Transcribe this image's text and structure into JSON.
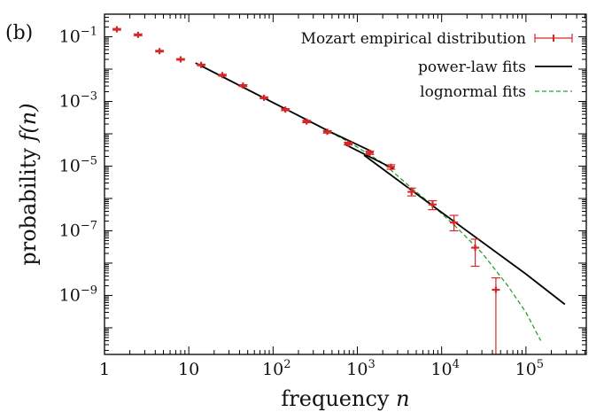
{
  "panel_label": "(b)",
  "chart_data": {
    "type": "scatter",
    "title": "",
    "xlabel": "frequency n",
    "ylabel": "probability f(n)",
    "x_scale": "log",
    "y_scale": "log",
    "xlim": [
      1,
      520000
    ],
    "ylim": [
      1.5e-11,
      0.5
    ],
    "x_ticks": [
      {
        "value": 1,
        "base": "1",
        "exp": ""
      },
      {
        "value": 10,
        "base": "10",
        "exp": ""
      },
      {
        "value": 100,
        "base": "10",
        "exp": "2"
      },
      {
        "value": 1000,
        "base": "10",
        "exp": "3"
      },
      {
        "value": 10000,
        "base": "10",
        "exp": "4"
      },
      {
        "value": 100000,
        "base": "10",
        "exp": "5"
      }
    ],
    "y_ticks": [
      {
        "value": 0.1,
        "base": "10",
        "exp": "−1"
      },
      {
        "value": 0.001,
        "base": "10",
        "exp": "−3"
      },
      {
        "value": 1e-05,
        "base": "10",
        "exp": "−5"
      },
      {
        "value": 1e-07,
        "base": "10",
        "exp": "−7"
      },
      {
        "value": 1e-09,
        "base": "10",
        "exp": "−9"
      }
    ],
    "legend_position": "top-right",
    "grid": false,
    "series": [
      {
        "name": "Mozart empirical distribution",
        "kind": "errorbar",
        "color": "#d62728",
        "points": [
          {
            "x": 1.4,
            "y": 0.17,
            "ylo": 0.16,
            "yhi": 0.18
          },
          {
            "x": 2.5,
            "y": 0.115,
            "ylo": 0.108,
            "yhi": 0.122
          },
          {
            "x": 4.5,
            "y": 0.036,
            "ylo": 0.034,
            "yhi": 0.038
          },
          {
            "x": 8,
            "y": 0.02,
            "ylo": 0.019,
            "yhi": 0.021
          },
          {
            "x": 14,
            "y": 0.0135,
            "ylo": 0.0128,
            "yhi": 0.0142
          },
          {
            "x": 25,
            "y": 0.0065,
            "ylo": 0.0061,
            "yhi": 0.0069
          },
          {
            "x": 44,
            "y": 0.0031,
            "ylo": 0.0029,
            "yhi": 0.0033
          },
          {
            "x": 78,
            "y": 0.0013,
            "ylo": 0.00122,
            "yhi": 0.00138
          },
          {
            "x": 140,
            "y": 0.00056,
            "ylo": 0.00052,
            "yhi": 0.0006
          },
          {
            "x": 250,
            "y": 0.00024,
            "ylo": 0.00022,
            "yhi": 0.00026
          },
          {
            "x": 440,
            "y": 0.000115,
            "ylo": 0.000105,
            "yhi": 0.000125
          },
          {
            "x": 780,
            "y": 5e-05,
            "ylo": 4.5e-05,
            "yhi": 5.5e-05
          },
          {
            "x": 1400,
            "y": 2.6e-05,
            "ylo": 2.3e-05,
            "yhi": 2.9e-05
          },
          {
            "x": 2500,
            "y": 9.5e-06,
            "ylo": 8e-06,
            "yhi": 1.1e-05
          },
          {
            "x": 4400,
            "y": 1.6e-06,
            "ylo": 1.2e-06,
            "yhi": 2.1e-06
          },
          {
            "x": 7800,
            "y": 6.5e-07,
            "ylo": 4.5e-07,
            "yhi": 8.5e-07
          },
          {
            "x": 14000,
            "y": 1.8e-07,
            "ylo": 1e-07,
            "yhi": 3e-07
          },
          {
            "x": 25000,
            "y": 3e-08,
            "ylo": 8e-09,
            "yhi": 5.5e-08
          },
          {
            "x": 44000,
            "y": 1.5e-09,
            "ylo": 1.5e-11,
            "yhi": 3.5e-09
          }
        ]
      },
      {
        "name": "power-law fits",
        "kind": "line",
        "color": "#000000",
        "segments": [
          [
            {
              "x": 12,
              "y": 0.0155
            },
            {
              "x": 100,
              "y": 0.00092
            },
            {
              "x": 500,
              "y": 0.000108
            },
            {
              "x": 1500,
              "y": 2.8e-05
            }
          ],
          [
            {
              "x": 700,
              "y": 4.8e-05
            },
            {
              "x": 2700,
              "y": 8.2e-06
            }
          ],
          [
            {
              "x": 1200,
              "y": 2.18e-05
            },
            {
              "x": 10000,
              "y": 3.7e-07
            },
            {
              "x": 100000,
              "y": 4.6e-09
            },
            {
              "x": 290000,
              "y": 5.3e-10
            }
          ]
        ]
      },
      {
        "name": "lognormal fits",
        "kind": "dashed-line",
        "color": "#2ca02c",
        "segments": [
          [
            {
              "x": 100,
              "y": 0.00092
            },
            {
              "x": 300,
              "y": 0.00021
            },
            {
              "x": 800,
              "y": 5.5e-05
            },
            {
              "x": 2000,
              "y": 1.25e-05
            },
            {
              "x": 4000,
              "y": 2.6e-06
            },
            {
              "x": 8000,
              "y": 5.8e-07
            },
            {
              "x": 15000,
              "y": 1.28e-07
            },
            {
              "x": 30000,
              "y": 2.1e-08
            },
            {
              "x": 60000,
              "y": 2.1e-09
            },
            {
              "x": 100000,
              "y": 3e-10
            },
            {
              "x": 150000,
              "y": 4e-11
            }
          ]
        ]
      }
    ]
  }
}
